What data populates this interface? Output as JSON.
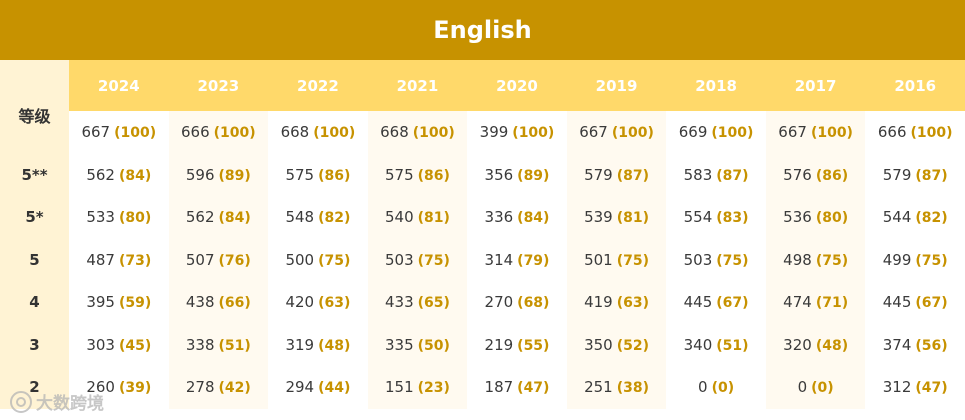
{
  "title": "English",
  "row_header_label": "等级",
  "years": [
    "2024",
    "2023",
    "2022",
    "2021",
    "2020",
    "2019",
    "2018",
    "2017",
    "2016"
  ],
  "rows": [
    {
      "grade": "",
      "cells": [
        {
          "value": "667",
          "pct": "(100)"
        },
        {
          "value": "666",
          "pct": "(100)"
        },
        {
          "value": "668",
          "pct": "(100)"
        },
        {
          "value": "668",
          "pct": "(100)"
        },
        {
          "value": "399",
          "pct": "(100)"
        },
        {
          "value": "667",
          "pct": "(100)"
        },
        {
          "value": "669",
          "pct": "(100)"
        },
        {
          "value": "667",
          "pct": "(100)"
        },
        {
          "value": "666",
          "pct": "(100)"
        }
      ]
    },
    {
      "grade": "5**",
      "cells": [
        {
          "value": "562",
          "pct": "(84)"
        },
        {
          "value": "596",
          "pct": "(89)"
        },
        {
          "value": "575",
          "pct": "(86)"
        },
        {
          "value": "575",
          "pct": "(86)"
        },
        {
          "value": "356",
          "pct": "(89)"
        },
        {
          "value": "579",
          "pct": "(87)"
        },
        {
          "value": "583",
          "pct": "(87)"
        },
        {
          "value": "576",
          "pct": "(86)"
        },
        {
          "value": "579",
          "pct": "(87)"
        }
      ]
    },
    {
      "grade": "5*",
      "cells": [
        {
          "value": "533",
          "pct": "(80)"
        },
        {
          "value": "562",
          "pct": "(84)"
        },
        {
          "value": "548",
          "pct": "(82)"
        },
        {
          "value": "540",
          "pct": "(81)"
        },
        {
          "value": "336",
          "pct": "(84)"
        },
        {
          "value": "539",
          "pct": "(81)"
        },
        {
          "value": "554",
          "pct": "(83)"
        },
        {
          "value": "536",
          "pct": "(80)"
        },
        {
          "value": "544",
          "pct": "(82)"
        }
      ]
    },
    {
      "grade": "5",
      "cells": [
        {
          "value": "487",
          "pct": "(73)"
        },
        {
          "value": "507",
          "pct": "(76)"
        },
        {
          "value": "500",
          "pct": "(75)"
        },
        {
          "value": "503",
          "pct": "(75)"
        },
        {
          "value": "314",
          "pct": "(79)"
        },
        {
          "value": "501",
          "pct": "(75)"
        },
        {
          "value": "503",
          "pct": "(75)"
        },
        {
          "value": "498",
          "pct": "(75)"
        },
        {
          "value": "499",
          "pct": "(75)"
        }
      ]
    },
    {
      "grade": "4",
      "cells": [
        {
          "value": "395",
          "pct": "(59)"
        },
        {
          "value": "438",
          "pct": "(66)"
        },
        {
          "value": "420",
          "pct": "(63)"
        },
        {
          "value": "433",
          "pct": "(65)"
        },
        {
          "value": "270",
          "pct": "(68)"
        },
        {
          "value": "419",
          "pct": "(63)"
        },
        {
          "value": "445",
          "pct": "(67)"
        },
        {
          "value": "474",
          "pct": "(71)"
        },
        {
          "value": "445",
          "pct": "(67)"
        }
      ]
    },
    {
      "grade": "3",
      "cells": [
        {
          "value": "303",
          "pct": "(45)"
        },
        {
          "value": "338",
          "pct": "(51)"
        },
        {
          "value": "319",
          "pct": "(48)"
        },
        {
          "value": "335",
          "pct": "(50)"
        },
        {
          "value": "219",
          "pct": "(55)"
        },
        {
          "value": "350",
          "pct": "(52)"
        },
        {
          "value": "340",
          "pct": "(51)"
        },
        {
          "value": "320",
          "pct": "(48)"
        },
        {
          "value": "374",
          "pct": "(56)"
        }
      ]
    },
    {
      "grade": "2",
      "cells": [
        {
          "value": "260",
          "pct": "(39)"
        },
        {
          "value": "278",
          "pct": "(42)"
        },
        {
          "value": "294",
          "pct": "(44)"
        },
        {
          "value": "151",
          "pct": "(23)"
        },
        {
          "value": "187",
          "pct": "(47)"
        },
        {
          "value": "251",
          "pct": "(38)"
        },
        {
          "value": "0",
          "pct": "(0)"
        },
        {
          "value": "0",
          "pct": "(0)"
        },
        {
          "value": "312",
          "pct": "(47)"
        }
      ]
    }
  ],
  "watermark_text": "大数跨境",
  "colors": {
    "title_bg": "#c79200",
    "header_bg": "#ffd96a",
    "accent_pct": "#c79200",
    "row_header_bg": "#fff3d4"
  }
}
